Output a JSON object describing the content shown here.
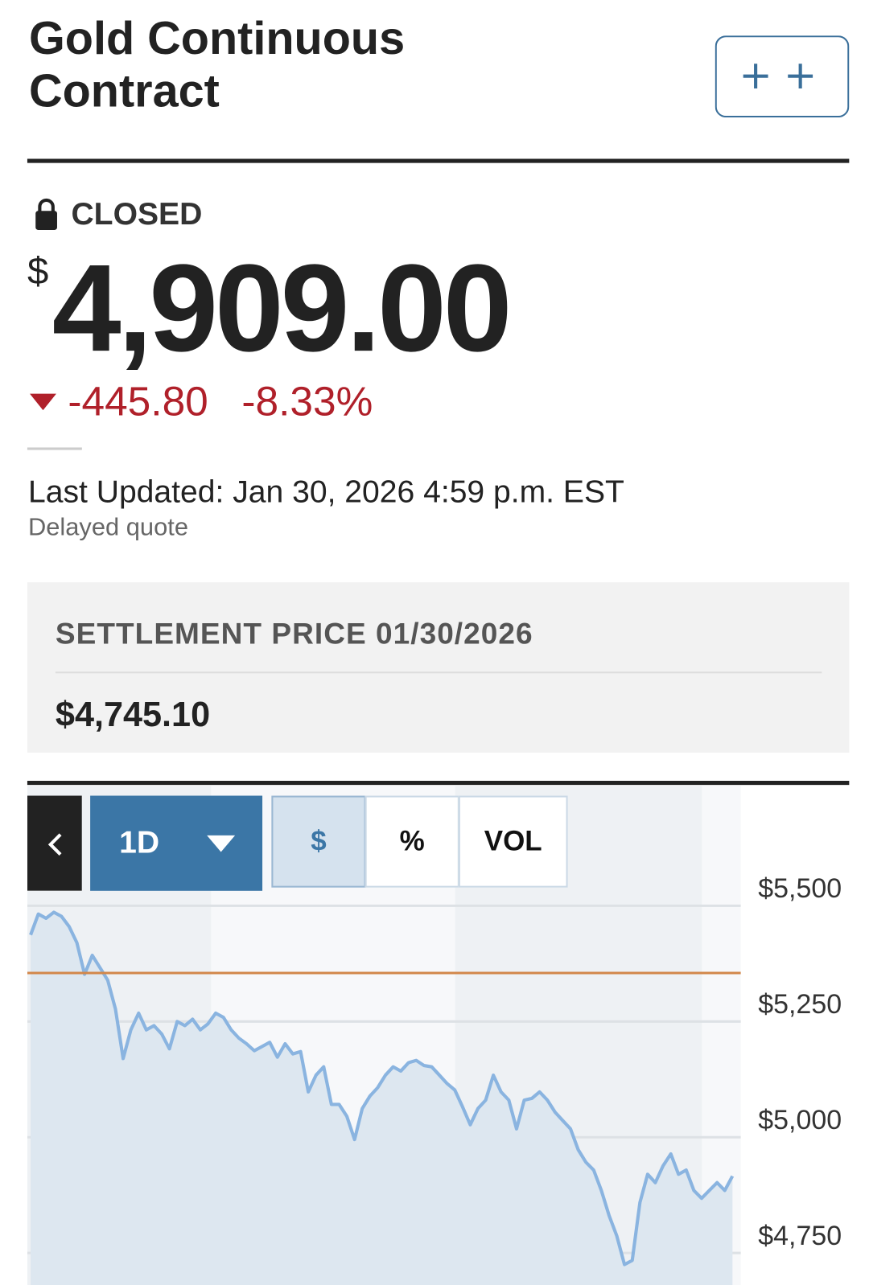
{
  "header": {
    "title_line_1": "Gold Continuous",
    "title_line_2": "Contract"
  },
  "quote": {
    "status": "CLOSED",
    "currency": "$",
    "price": "4,909.00",
    "change": "-445.80",
    "change_percent": "-8.33%",
    "last_updated": "Last Updated: Jan 30, 2026 4:59 p.m. EST",
    "note": "Delayed quote"
  },
  "settlement": {
    "label": "SETTLEMENT PRICE 01/30/2026",
    "value": "$4,745.10"
  },
  "chart_controls": {
    "range": "1D",
    "modes": [
      "$",
      "%",
      "VOL"
    ]
  },
  "chart_data": {
    "type": "line",
    "ylim": [
      4655,
      5518
    ],
    "yticks": [
      {
        "value": 5500,
        "label": "$5,500"
      },
      {
        "value": 5250,
        "label": "$5,250"
      },
      {
        "value": 5000,
        "label": "$5,000"
      },
      {
        "value": 4750,
        "label": "$4,750"
      }
    ],
    "grid": true,
    "reference_line": {
      "value": 5354.8,
      "color": "#d2874a"
    },
    "series": [
      {
        "color": "#8ab4e0",
        "area_color": "#dde7f0",
        "values": [
          5437,
          5482,
          5473,
          5486,
          5477,
          5455,
          5420,
          5352,
          5393,
          5366,
          5339,
          5277,
          5170,
          5232,
          5268,
          5232,
          5241,
          5223,
          5191,
          5250,
          5241,
          5255,
          5232,
          5245,
          5268,
          5259,
          5232,
          5214,
          5202,
          5187,
          5196,
          5205,
          5173,
          5202,
          5180,
          5185,
          5098,
          5134,
          5152,
          5071,
          5071,
          5045,
          4995,
          5062,
          5089,
          5107,
          5134,
          5152,
          5143,
          5161,
          5166,
          5155,
          5152,
          5134,
          5116,
          5102,
          5066,
          5027,
          5062,
          5080,
          5134,
          5098,
          5080,
          5018,
          5080,
          5084,
          5098,
          5080,
          5054,
          5036,
          5018,
          4973,
          4946,
          4929,
          4885,
          4831,
          4787,
          4725,
          4734,
          4859,
          4920,
          4902,
          4938,
          4964,
          4920,
          4929,
          4885,
          4868,
          4885,
          4902,
          4885,
          4916
        ]
      }
    ]
  }
}
